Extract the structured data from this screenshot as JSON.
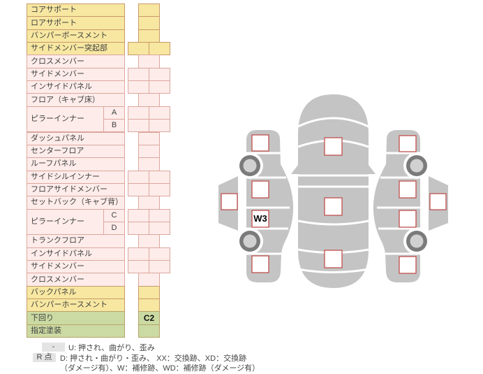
{
  "table": {
    "rows": [
      {
        "label": "コアサポート",
        "color": "yellow",
        "boxes": 1
      },
      {
        "label": "ロアサポート",
        "color": "yellow",
        "boxes": 1
      },
      {
        "label": "バンパーボースメント",
        "color": "yellow",
        "boxes": 1
      },
      {
        "label": "サイドメンバー突起部",
        "color": "yellow",
        "boxes": 2
      },
      {
        "label": "クロスメンバー",
        "color": "pink",
        "boxes": 1
      },
      {
        "label": "サイドメンバー",
        "color": "pink",
        "boxes": 2
      },
      {
        "label": "インサイドパネル",
        "color": "pink",
        "boxes": 2
      },
      {
        "label": "フロア（キャブ床）",
        "color": "pink",
        "boxes": 1
      },
      {
        "label": "ピラーインナー",
        "color": "pink",
        "subs": [
          "A",
          "B"
        ],
        "boxes": 2
      },
      {
        "label": "ダッシュパネル",
        "color": "pink",
        "boxes": 1
      },
      {
        "label": "センターフロア",
        "color": "pink",
        "boxes": 1
      },
      {
        "label": "ルーフパネル",
        "color": "pink",
        "boxes": 1
      },
      {
        "label": "サイドシルインナー",
        "color": "pink",
        "boxes": 2
      },
      {
        "label": "フロアサイドメンバー",
        "color": "pink",
        "boxes": 2
      },
      {
        "label": "セットバック（キャブ背）",
        "color": "pink",
        "boxes": 1
      },
      {
        "label": "ピラーインナー",
        "color": "pink",
        "subs": [
          "C",
          "D"
        ],
        "boxes": 2
      },
      {
        "label": "トランクフロア",
        "color": "pink",
        "boxes": 1
      },
      {
        "label": "インサイドパネル",
        "color": "pink",
        "boxes": 2
      },
      {
        "label": "サイドメンバー",
        "color": "pink",
        "boxes": 2
      },
      {
        "label": "クロスメンバー",
        "color": "pink",
        "boxes": 1
      },
      {
        "label": "バックパネル",
        "color": "yellow",
        "boxes": 1
      },
      {
        "label": "バンパーホースメント",
        "color": "yellow",
        "boxes": 1
      },
      {
        "label": "下回り",
        "color": "green",
        "boxes": 1,
        "value": "C2"
      },
      {
        "label": "指定塗装",
        "color": "green",
        "boxes": 1
      }
    ]
  },
  "diagram": {
    "marks": {
      "left_rear_door": "W3"
    }
  },
  "legend": {
    "row1_badge": "-",
    "row1_text": "U: 押され、曲がり、歪み",
    "row2_badge": "R 点",
    "row2_text": "D: 押され・曲がり・歪み、 XX：交換跡、XD：交換跡",
    "row3_text": "（ダメージ有）、W：補修跡、WD：補修跡（ダメージ有）"
  },
  "colors": {
    "row_yellow": "#f7e7a1",
    "row_pink": "#fdecea",
    "row_green": "#cbdaa2",
    "cell_border_yellow": "#c9996a",
    "cell_border_pink": "#dca79e",
    "checkbox_border": "#c0504d",
    "car_body_gray": "#c4c4c4",
    "wheel_ring": "#7b7b7b",
    "wheel_hub": "#d1d1d1",
    "legend_badge_gray": "#e4e4e4"
  }
}
